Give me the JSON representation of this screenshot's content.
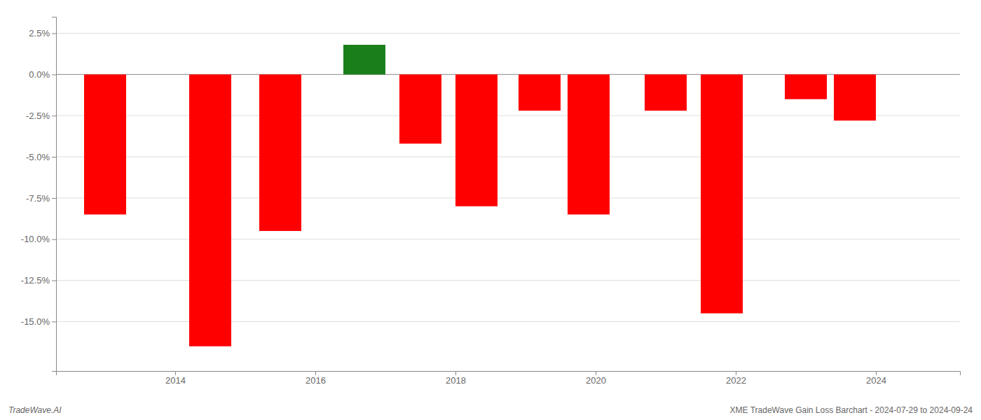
{
  "chart_data": {
    "type": "bar",
    "x": [
      2013,
      2014.5,
      2015.5,
      2016.7,
      2017.5,
      2018.3,
      2019.2,
      2019.9,
      2021,
      2021.8,
      2023,
      2023.7
    ],
    "values": [
      -0.085,
      -0.165,
      -0.095,
      0.018,
      -0.042,
      -0.08,
      -0.022,
      -0.085,
      -0.022,
      -0.145,
      -0.015,
      -0.028
    ],
    "colors": [
      "#ff0000",
      "#ff0000",
      "#ff0000",
      "#1a7f1a",
      "#ff0000",
      "#ff0000",
      "#ff0000",
      "#ff0000",
      "#ff0000",
      "#ff0000",
      "#ff0000",
      "#ff0000"
    ],
    "xlim": [
      2012.3,
      2025.2
    ],
    "xticks": [
      2014,
      2016,
      2018,
      2020,
      2022,
      2024
    ],
    "ylim": [
      -0.18,
      0.035
    ],
    "yticks": [
      {
        "value": -0.15,
        "label": "-15.0%"
      },
      {
        "value": -0.125,
        "label": "-12.5%"
      },
      {
        "value": -0.1,
        "label": "-10.0%"
      },
      {
        "value": -0.075,
        "label": "-7.5%"
      },
      {
        "value": -0.05,
        "label": "-5.0%"
      },
      {
        "value": -0.025,
        "label": "-2.5%"
      },
      {
        "value": 0.0,
        "label": "0.0%"
      },
      {
        "value": 0.025,
        "label": "2.5%"
      }
    ],
    "grid": true,
    "annotations": [
      "TradeWave.AI",
      "XME TradeWave Gain Loss Barchart - 2024-07-29 to 2024-09-24"
    ]
  }
}
